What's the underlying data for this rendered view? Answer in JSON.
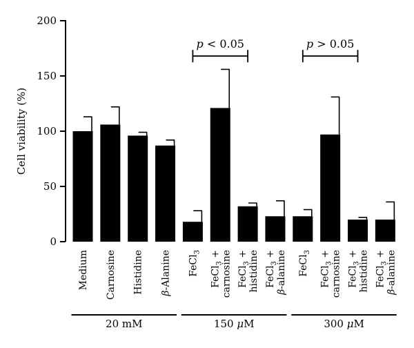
{
  "chart_data": {
    "type": "bar",
    "ylabel": "Cell viability (%)",
    "ylim": [
      0,
      200
    ],
    "yticks": [
      0,
      50,
      100,
      150,
      200
    ],
    "categories": [
      {
        "lines": [
          "Medium"
        ]
      },
      {
        "lines": [
          "Carnosine"
        ]
      },
      {
        "lines": [
          "Histidine"
        ]
      },
      {
        "lines": [
          "β-Alanine"
        ]
      },
      {
        "lines": [
          "FeCl3"
        ]
      },
      {
        "lines": [
          "FeCl3 +",
          "carnosine"
        ]
      },
      {
        "lines": [
          "FeCl3 +",
          "histidine"
        ]
      },
      {
        "lines": [
          "FeCl3 +",
          "β-alanine"
        ]
      },
      {
        "lines": [
          "FeCl3"
        ]
      },
      {
        "lines": [
          "FeCl3 +",
          "carnosine"
        ]
      },
      {
        "lines": [
          "FeCl3 +",
          "histidine"
        ]
      },
      {
        "lines": [
          "FeCl3 +",
          "β-alanine"
        ]
      }
    ],
    "values": [
      100,
      106,
      96,
      87,
      18,
      121,
      32,
      23,
      23,
      97,
      20,
      20
    ],
    "errors": [
      13,
      16,
      3,
      5,
      10,
      35,
      3,
      14,
      6,
      34,
      2,
      16
    ],
    "groups": [
      {
        "label": "20 mM",
        "start": 0,
        "end": 3
      },
      {
        "label": "150 μM",
        "start": 4,
        "end": 7
      },
      {
        "label": "300 μM",
        "start": 8,
        "end": 11
      }
    ],
    "significance": [
      {
        "from": 4,
        "to": 6,
        "level": 168,
        "label": "p < 0.05"
      },
      {
        "from": 8,
        "to": 10,
        "level": 168,
        "label": "p > 0.05"
      }
    ],
    "grid": false,
    "legend": "none"
  }
}
